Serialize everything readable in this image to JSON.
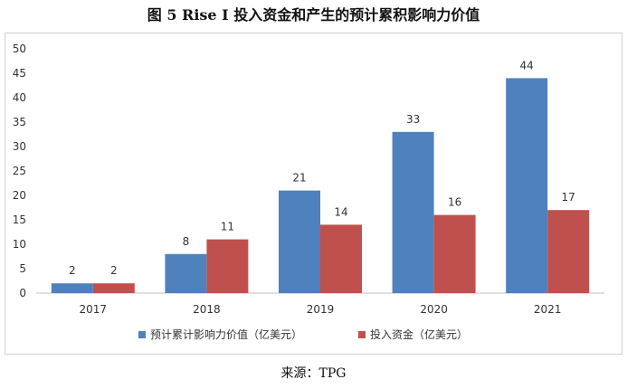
{
  "title": "图 5 Rise I 投入资金和产生的预计累积影响力价值",
  "source": "来源：TPG",
  "colors": {
    "series1": "#4f81bd",
    "series2": "#c0504d",
    "axis": "#bfbfbf"
  },
  "chart_data": {
    "type": "bar",
    "categories": [
      "2017",
      "2018",
      "2019",
      "2020",
      "2021"
    ],
    "series": [
      {
        "name": "预计累计影响力价值（亿美元）",
        "values": [
          2,
          8,
          21,
          33,
          44
        ]
      },
      {
        "name": "投入资金（亿美元）",
        "values": [
          2,
          11,
          14,
          16,
          17
        ]
      }
    ],
    "ylim": [
      0,
      50
    ],
    "yticks": [
      0,
      5,
      10,
      15,
      20,
      25,
      30,
      35,
      40,
      45,
      50
    ],
    "grid": false,
    "legend": "bottom",
    "data_labels": true
  }
}
